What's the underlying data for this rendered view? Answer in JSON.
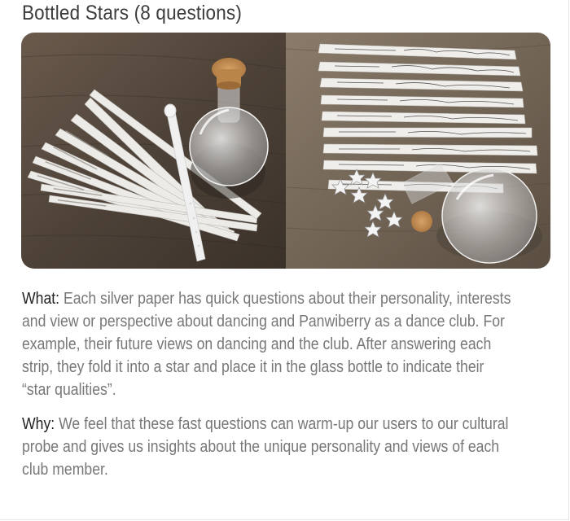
{
  "title": "Bottled Stars (8 questions)",
  "image_alt": "Bottled Stars cultural probe kit",
  "what": {
    "lead": "What:",
    "text": "Each silver paper has quick questions about their personality, interests and view or perspective about dancing and Panwiberry as a dance club. For example, their future views on dancing and the club. After answering each strip, they fold it into a star and place it in the glass bottle to indicate their “star qualities”."
  },
  "why": {
    "lead": "Why:",
    "text": "We feel that these fast questions can warm-up our users to our cultural probe and gives us insights about the unique personality and views of each club member."
  }
}
